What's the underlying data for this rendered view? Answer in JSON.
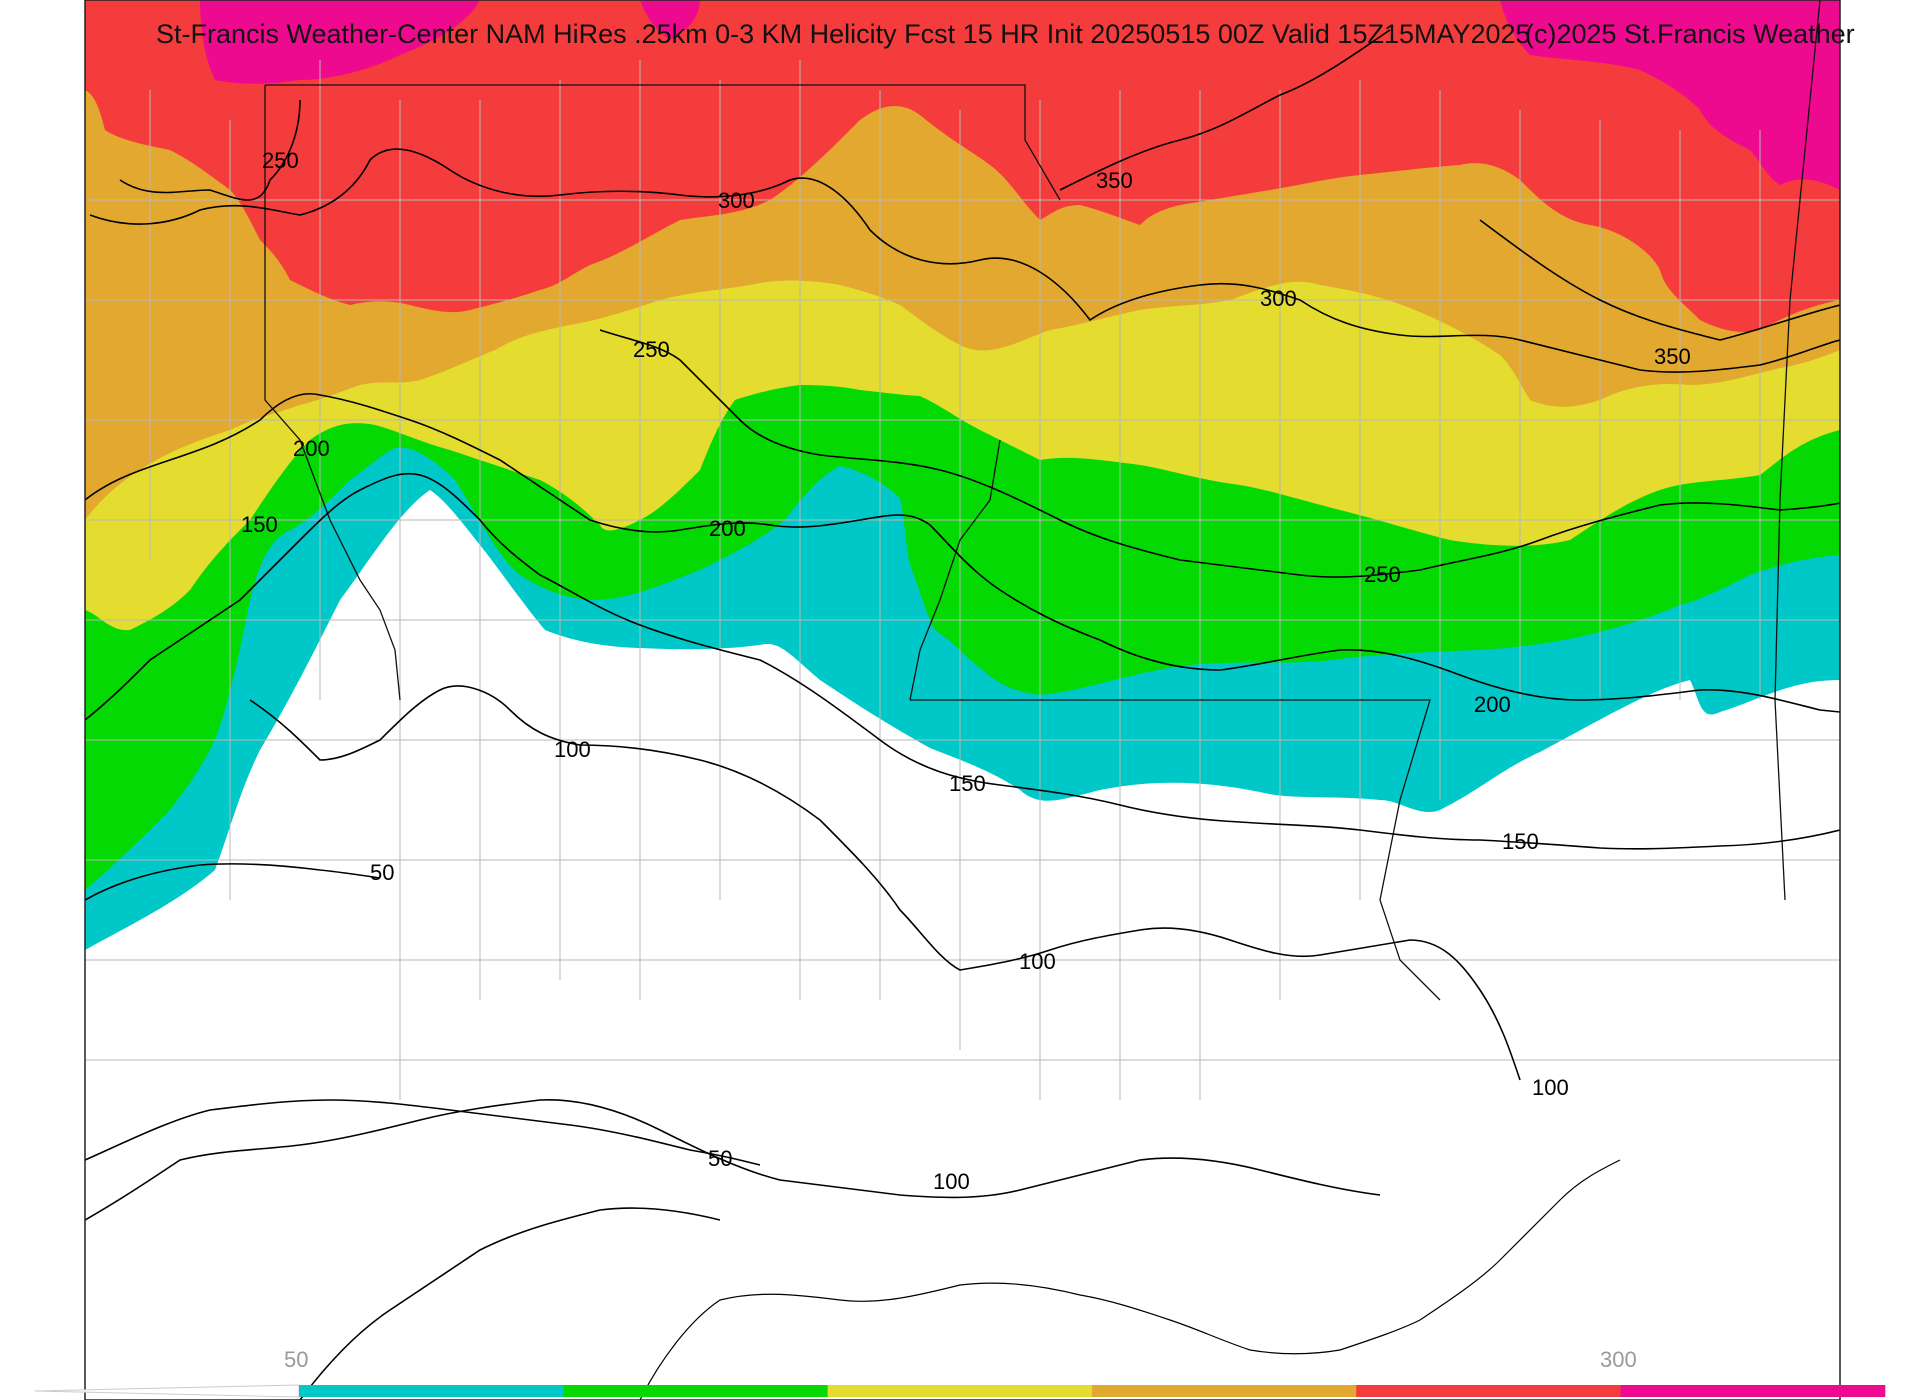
{
  "title": "St-Francis Weather-Center NAM HiRes .25km 0-3 KM Helicity Fcst 15 HR Init 20250515 00Z  Valid 15Z15MAY2025",
  "copyright": "(c)2025 St.Francis Weather",
  "colors": {
    "magenta": "#ee0a8f",
    "red": "#f43c3c",
    "orange": "#e2a830",
    "yellow": "#e4dc2f",
    "green": "#04d904",
    "cyan": "#00c8c8",
    "background": "#ffffff",
    "contour": "#000000",
    "county_lines": "#b8b8b8"
  },
  "contour_labels": [
    "250",
    "300",
    "350",
    "350",
    "300",
    "250",
    "200",
    "150",
    "200",
    "250",
    "200",
    "100",
    "150",
    "150",
    "50",
    "100",
    "100",
    "50",
    "100"
  ],
  "colorbar": {
    "labels": [
      "50",
      "300"
    ],
    "segments": [
      {
        "value_from": 50,
        "value_to": 100,
        "color": "#00c8c8"
      },
      {
        "value_from": 100,
        "value_to": 150,
        "color": "#04d904"
      },
      {
        "value_from": 150,
        "value_to": 200,
        "color": "#e4dc2f"
      },
      {
        "value_from": 200,
        "value_to": 250,
        "color": "#e2a830"
      },
      {
        "value_from": 250,
        "value_to": 300,
        "color": "#f43c3c"
      },
      {
        "value_from": 300,
        "value_to": 350,
        "color": "#ee0a8f"
      }
    ]
  }
}
